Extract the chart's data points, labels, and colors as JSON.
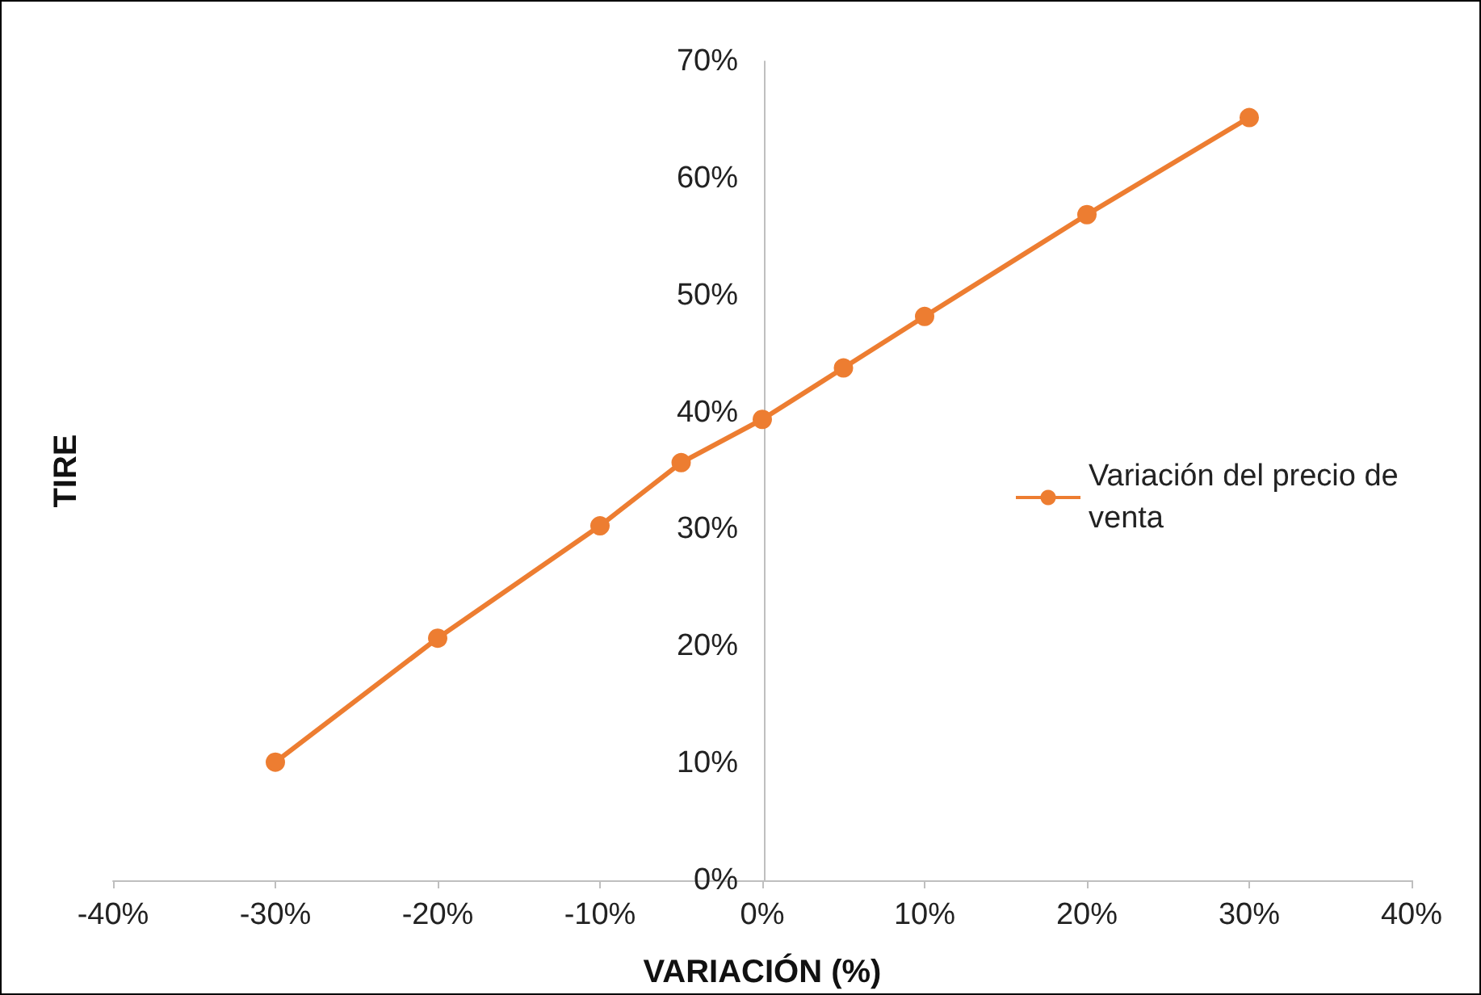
{
  "chart_data": {
    "type": "line",
    "xlabel": "VARIACIÓN (%)",
    "ylabel": "TIRE",
    "x": [
      -30,
      -20,
      -10,
      -5,
      0,
      5,
      10,
      20,
      30
    ],
    "series": [
      {
        "name": "Variación del precio de venta",
        "color": "#ed7d31",
        "values": [
          10.1,
          20.7,
          30.3,
          35.7,
          39.4,
          43.8,
          48.2,
          56.9,
          65.2
        ]
      }
    ],
    "xlim": [
      -40,
      40
    ],
    "xticks": [
      {
        "value": -40,
        "label": "-40%"
      },
      {
        "value": -30,
        "label": "-30%"
      },
      {
        "value": -20,
        "label": "-20%"
      },
      {
        "value": -10,
        "label": "-10%"
      },
      {
        "value": 0,
        "label": "0%"
      },
      {
        "value": 10,
        "label": "10%"
      },
      {
        "value": 20,
        "label": "20%"
      },
      {
        "value": 30,
        "label": "30%"
      },
      {
        "value": 40,
        "label": "40%"
      }
    ],
    "ylim": [
      0,
      70
    ],
    "yticks": [
      {
        "value": 0,
        "label": "0%"
      },
      {
        "value": 10,
        "label": "10%"
      },
      {
        "value": 20,
        "label": "20%"
      },
      {
        "value": 30,
        "label": "30%"
      },
      {
        "value": 40,
        "label": "40%"
      },
      {
        "value": 50,
        "label": "50%"
      },
      {
        "value": 60,
        "label": "60%"
      },
      {
        "value": 70,
        "label": "70%"
      }
    ],
    "grid": false,
    "legend": "right",
    "marker": "circle",
    "line_style": "solid"
  }
}
